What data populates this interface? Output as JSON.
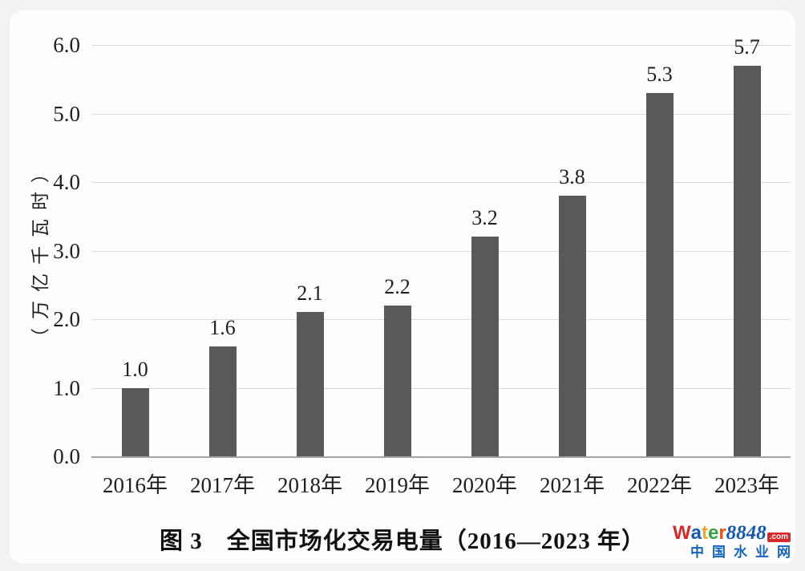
{
  "chart_data": {
    "type": "bar",
    "title": "图 3　全国市场化交易电量（2016—2023 年）",
    "categories": [
      "2016年",
      "2017年",
      "2018年",
      "2019年",
      "2020年",
      "2021年",
      "2022年",
      "2023年"
    ],
    "values": [
      1.0,
      1.6,
      2.1,
      2.2,
      3.2,
      3.8,
      5.3,
      5.7
    ],
    "value_labels": [
      "1.0",
      "1.6",
      "2.1",
      "2.2",
      "3.2",
      "3.8",
      "5.3",
      "5.7"
    ],
    "xlabel": "",
    "ylabel": "（万亿千瓦时）",
    "ylim": [
      0,
      6
    ],
    "yticks": [
      "0.0",
      "1.0",
      "2.0",
      "3.0",
      "4.0",
      "5.0",
      "6.0"
    ],
    "grid": true,
    "legend_position": "none",
    "bar_color": "#595959",
    "gridline_color": "#d9d9d9",
    "axis_text_color": "#1f1f1f"
  },
  "caption": {
    "text": "图 3　全国市场化交易电量（2016—2023 年）"
  },
  "watermark": {
    "word_letters": [
      {
        "ch": "W",
        "color": "#d7282a"
      },
      {
        "ch": "a",
        "color": "#1559b7"
      },
      {
        "ch": "t",
        "color": "#f2a71b"
      },
      {
        "ch": "e",
        "color": "#35a24b"
      },
      {
        "ch": "r",
        "color": "#e8571d"
      }
    ],
    "number": "8848",
    "number_color": "#1559b7",
    "tld": ".com",
    "tld_bg": "#d7282a",
    "tld_color": "#ffffff",
    "line2": "中国水业网",
    "line2_color": "#1565c0"
  }
}
